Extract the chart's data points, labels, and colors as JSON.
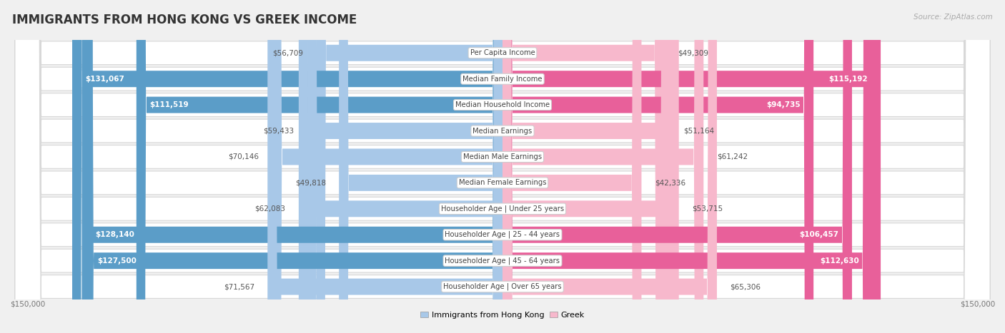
{
  "title": "IMMIGRANTS FROM HONG KONG VS GREEK INCOME",
  "source": "Source: ZipAtlas.com",
  "categories": [
    "Per Capita Income",
    "Median Family Income",
    "Median Household Income",
    "Median Earnings",
    "Median Male Earnings",
    "Median Female Earnings",
    "Householder Age | Under 25 years",
    "Householder Age | 25 - 44 years",
    "Householder Age | 45 - 64 years",
    "Householder Age | Over 65 years"
  ],
  "hk_values": [
    56709,
    131067,
    111519,
    59433,
    70146,
    49818,
    62083,
    128140,
    127500,
    71567
  ],
  "greek_values": [
    49309,
    115192,
    94735,
    51164,
    61242,
    42336,
    53715,
    106457,
    112630,
    65306
  ],
  "hk_labels": [
    "$56,709",
    "$131,067",
    "$111,519",
    "$59,433",
    "$70,146",
    "$49,818",
    "$62,083",
    "$128,140",
    "$127,500",
    "$71,567"
  ],
  "greek_labels": [
    "$49,309",
    "$115,192",
    "$94,735",
    "$51,164",
    "$61,242",
    "$42,336",
    "$53,715",
    "$106,457",
    "$112,630",
    "$65,306"
  ],
  "hk_color_light": "#a8c8e8",
  "hk_color_dark": "#5b9dc8",
  "greek_color_light": "#f7b8cc",
  "greek_color_dark": "#e8609a",
  "max_val": 150000,
  "background_color": "#f0f0f0",
  "row_bg": "#ffffff",
  "row_border": "#d8d8d8",
  "legend_hk": "Immigrants from Hong Kong",
  "legend_greek": "Greek",
  "label_inside_color_hk": "#ffffff",
  "label_inside_color_greek": "#ffffff",
  "label_outside_color": "#555555",
  "hk_threshold": 80000,
  "greek_threshold": 80000
}
